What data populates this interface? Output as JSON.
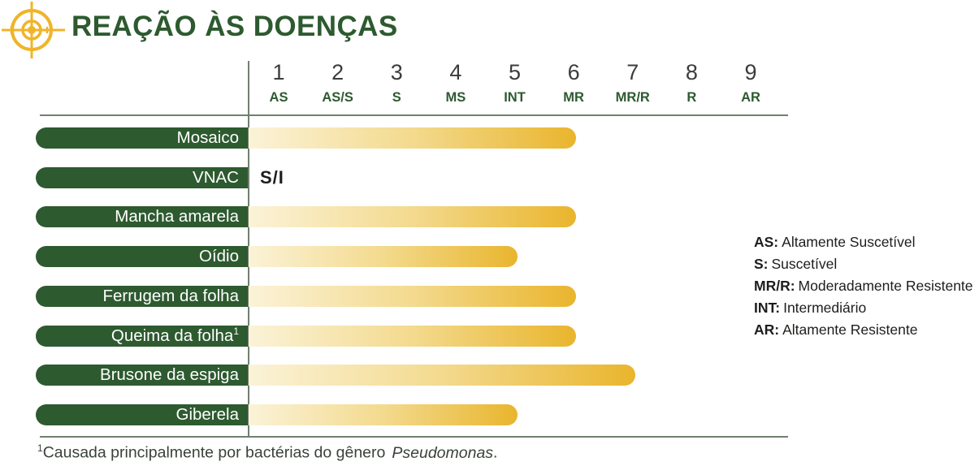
{
  "header": {
    "title": "REAÇÃO ÀS DOENÇAS",
    "title_color": "#2D5A2F",
    "icon": "target-crosshair",
    "icon_color": "#F0B429"
  },
  "chart_data": {
    "type": "bar",
    "orientation": "horizontal",
    "title": "REAÇÃO ÀS DOENÇAS",
    "xlim": [
      1,
      9
    ],
    "grid": false,
    "scale": {
      "ticks": [
        1,
        2,
        3,
        4,
        5,
        6,
        7,
        8,
        9
      ],
      "tick_labels": [
        "AS",
        "AS/S",
        "S",
        "MS",
        "INT",
        "MR",
        "MR/R",
        "R",
        "AR"
      ]
    },
    "rows": [
      {
        "label": "Mosaico",
        "sup": "",
        "score": 6,
        "note": ""
      },
      {
        "label": "VNAC",
        "sup": "",
        "score": null,
        "note": "S/I"
      },
      {
        "label": "Mancha amarela",
        "sup": "",
        "score": 6,
        "note": ""
      },
      {
        "label": "Oídio",
        "sup": "",
        "score": 5,
        "note": ""
      },
      {
        "label": "Ferrugem da folha",
        "sup": "",
        "score": 6,
        "note": ""
      },
      {
        "label": "Queima da folha",
        "sup": "1",
        "score": 6,
        "note": ""
      },
      {
        "label": "Brusone da espiga",
        "sup": "",
        "score": 7,
        "note": ""
      },
      {
        "label": "Giberela",
        "sup": "",
        "score": 5,
        "note": ""
      }
    ],
    "pill_color": "#2D5A2F",
    "bar_gradient": [
      "#FBF3D8",
      "#E9B52D"
    ]
  },
  "legend": {
    "items": [
      {
        "abbr": "AS:",
        "text": "Altamente Suscetível"
      },
      {
        "abbr": "S:",
        "text": "Suscetível"
      },
      {
        "abbr": "MR/R:",
        "text": "Moderadamente Resistente"
      },
      {
        "abbr": "INT:",
        "text": "Intermediário"
      },
      {
        "abbr": "AR:",
        "text": "Altamente Resistente"
      }
    ]
  },
  "footnote": {
    "sup": "1",
    "text": "Causada principalmente por bactérias do gênero",
    "italic": "Pseudomonas",
    "suffix": "."
  }
}
